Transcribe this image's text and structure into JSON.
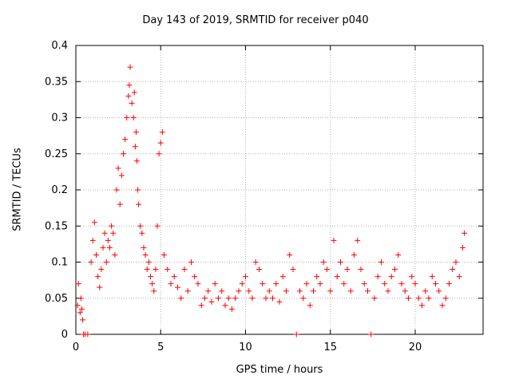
{
  "chart_data": {
    "type": "scatter",
    "title": "Day 143 of 2019, SRMTID for receiver p040",
    "xlabel": "GPS time / hours",
    "ylabel": "SRMTID / TECUs",
    "xlim": [
      0,
      24
    ],
    "ylim": [
      0,
      0.4
    ],
    "xticks": [
      0,
      5,
      10,
      15,
      20
    ],
    "yticks": [
      0,
      0.05,
      0.1,
      0.15,
      0.2,
      0.25,
      0.3,
      0.35,
      0.4
    ],
    "xtick_labels": [
      "0",
      "5",
      "10",
      "15",
      "20"
    ],
    "ytick_labels": [
      "0",
      "0.05",
      "0.1",
      "0.15",
      "0.2",
      "0.25",
      "0.3",
      "0.35",
      "0.4"
    ],
    "grid": true,
    "marker": "+",
    "color": "#ff0000",
    "series": [
      {
        "name": "SRMTID",
        "x": [
          0.1,
          0.15,
          0.25,
          0.3,
          0.35,
          0.4,
          0.45,
          0.55,
          0.7,
          0.9,
          1.0,
          1.1,
          1.2,
          1.3,
          1.4,
          1.5,
          1.6,
          1.7,
          1.8,
          1.9,
          2.0,
          2.1,
          2.2,
          2.3,
          2.4,
          2.5,
          2.6,
          2.7,
          2.8,
          2.9,
          3.0,
          3.1,
          3.15,
          3.2,
          3.3,
          3.4,
          3.45,
          3.5,
          3.55,
          3.6,
          3.65,
          3.7,
          3.8,
          3.9,
          4.0,
          4.1,
          4.2,
          4.3,
          4.4,
          4.5,
          4.6,
          4.7,
          4.8,
          4.9,
          5.0,
          5.1,
          5.2,
          5.4,
          5.6,
          5.8,
          6.0,
          6.2,
          6.4,
          6.6,
          6.8,
          7.0,
          7.2,
          7.4,
          7.6,
          7.8,
          8.0,
          8.2,
          8.4,
          8.6,
          8.8,
          9.0,
          9.2,
          9.4,
          9.6,
          9.8,
          10.0,
          10.2,
          10.4,
          10.6,
          10.8,
          11.0,
          11.2,
          11.4,
          11.6,
          11.8,
          12.0,
          12.2,
          12.4,
          12.6,
          12.8,
          13.0,
          13.2,
          13.4,
          13.6,
          13.8,
          14.0,
          14.2,
          14.4,
          14.6,
          14.8,
          15.0,
          15.2,
          15.4,
          15.6,
          15.8,
          16.0,
          16.2,
          16.4,
          16.6,
          16.8,
          17.0,
          17.2,
          17.4,
          17.6,
          17.8,
          18.0,
          18.2,
          18.4,
          18.6,
          18.8,
          19.0,
          19.2,
          19.4,
          19.6,
          19.8,
          20.0,
          20.2,
          20.4,
          20.6,
          20.8,
          21.0,
          21.2,
          21.4,
          21.6,
          21.8,
          22.0,
          22.2,
          22.4,
          22.6,
          22.8,
          22.9
        ],
        "y": [
          0.04,
          0.07,
          0.03,
          0.05,
          0.035,
          0.02,
          0.0,
          0.0,
          0.0,
          0.1,
          0.13,
          0.155,
          0.11,
          0.08,
          0.065,
          0.09,
          0.12,
          0.14,
          0.1,
          0.13,
          0.12,
          0.15,
          0.14,
          0.11,
          0.2,
          0.23,
          0.18,
          0.22,
          0.25,
          0.27,
          0.3,
          0.33,
          0.345,
          0.37,
          0.32,
          0.3,
          0.335,
          0.26,
          0.28,
          0.24,
          0.2,
          0.18,
          0.15,
          0.14,
          0.12,
          0.11,
          0.09,
          0.1,
          0.08,
          0.07,
          0.06,
          0.09,
          0.15,
          0.25,
          0.265,
          0.28,
          0.11,
          0.09,
          0.07,
          0.08,
          0.065,
          0.05,
          0.09,
          0.06,
          0.1,
          0.08,
          0.07,
          0.04,
          0.05,
          0.06,
          0.045,
          0.07,
          0.05,
          0.06,
          0.04,
          0.05,
          0.035,
          0.05,
          0.06,
          0.07,
          0.08,
          0.06,
          0.05,
          0.1,
          0.09,
          0.07,
          0.05,
          0.06,
          0.05,
          0.07,
          0.045,
          0.08,
          0.06,
          0.11,
          0.09,
          0.0,
          0.06,
          0.05,
          0.07,
          0.04,
          0.06,
          0.08,
          0.07,
          0.1,
          0.09,
          0.06,
          0.13,
          0.08,
          0.1,
          0.07,
          0.09,
          0.06,
          0.11,
          0.13,
          0.09,
          0.07,
          0.06,
          0.0,
          0.05,
          0.08,
          0.1,
          0.07,
          0.06,
          0.08,
          0.09,
          0.11,
          0.07,
          0.06,
          0.05,
          0.08,
          0.07,
          0.05,
          0.04,
          0.06,
          0.05,
          0.08,
          0.07,
          0.06,
          0.04,
          0.05,
          0.07,
          0.09,
          0.1,
          0.08,
          0.12,
          0.14
        ]
      }
    ]
  }
}
